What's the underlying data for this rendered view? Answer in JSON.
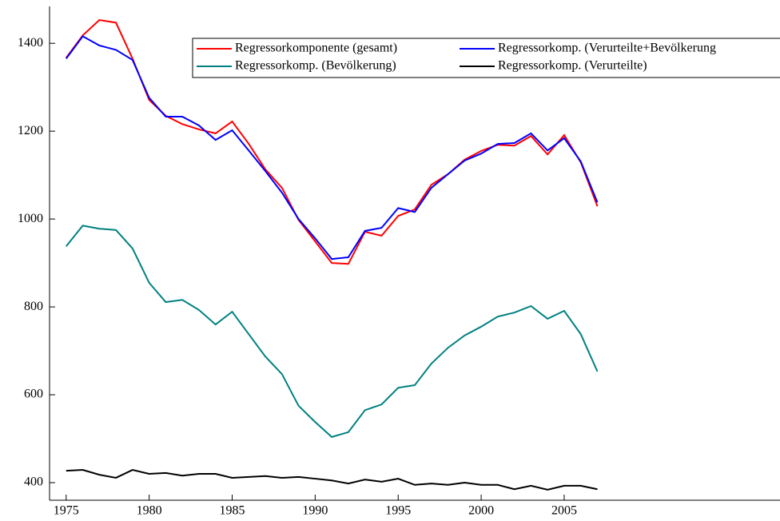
{
  "chart_data": {
    "type": "line",
    "x": [
      1975,
      1976,
      1977,
      1978,
      1979,
      1980,
      1981,
      1982,
      1983,
      1984,
      1985,
      1986,
      1987,
      1988,
      1989,
      1990,
      1991,
      1992,
      1993,
      1994,
      1995,
      1996,
      1997,
      1998,
      1999,
      2000,
      2001,
      2002,
      2003,
      2004,
      2005,
      2006,
      2007
    ],
    "xlim": [
      1974,
      2018
    ],
    "xticks": [
      1975,
      1980,
      1985,
      1990,
      1995,
      2000,
      2005
    ],
    "ylim": [
      360,
      1484
    ],
    "yticks": [
      400,
      600,
      800,
      1000,
      1200,
      1400
    ],
    "legend": "upper right",
    "series": [
      {
        "name": "Regressorkomponente (gesamt)",
        "color": "#ff0000",
        "values": [
          1367,
          1418,
          1453,
          1447,
          1365,
          1271,
          1235,
          1216,
          1204,
          1195,
          1222,
          1171,
          1113,
          1071,
          998,
          949,
          900,
          898,
          971,
          962,
          1007,
          1022,
          1078,
          1102,
          1135,
          1155,
          1169,
          1167,
          1189,
          1147,
          1191,
          1129,
          1029
        ]
      },
      {
        "name": "Regressorkomp. (Verurteilte+Bevölkerung",
        "color": "#0000ff",
        "values": [
          1365,
          1416,
          1395,
          1385,
          1362,
          1276,
          1233,
          1233,
          1213,
          1180,
          1202,
          1156,
          1109,
          1060,
          1000,
          956,
          909,
          913,
          973,
          980,
          1025,
          1016,
          1071,
          1102,
          1133,
          1149,
          1171,
          1173,
          1195,
          1156,
          1184,
          1131,
          1038
        ]
      },
      {
        "name": "Regressorkomp. (Bevölkerung)",
        "color": "#008080",
        "values": [
          938,
          985,
          978,
          975,
          933,
          855,
          811,
          816,
          793,
          760,
          789,
          738,
          687,
          647,
          575,
          538,
          504,
          515,
          565,
          578,
          616,
          622,
          671,
          707,
          735,
          755,
          778,
          787,
          802,
          773,
          791,
          738,
          653
        ]
      },
      {
        "name": "Regressorkomp. (Verurteilte)",
        "color": "#000000",
        "values": [
          427,
          429,
          418,
          411,
          429,
          420,
          422,
          416,
          420,
          420,
          411,
          413,
          415,
          411,
          413,
          409,
          405,
          398,
          407,
          402,
          409,
          395,
          398,
          395,
          400,
          395,
          395,
          385,
          393,
          384,
          393,
          393,
          385
        ]
      }
    ]
  }
}
